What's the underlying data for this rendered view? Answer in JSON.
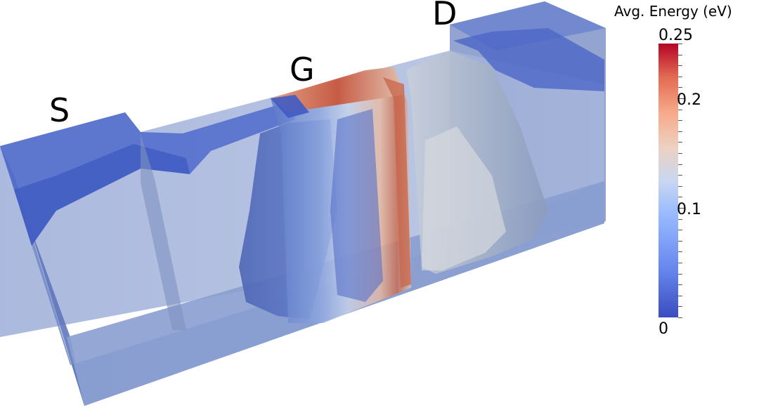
{
  "terminals": {
    "source": "S",
    "gate": "G",
    "drain": "D"
  },
  "colorbar": {
    "title": "Avg. Energy (eV)",
    "min_label": "0",
    "max_label": "0.25",
    "tick_labels": [
      "0.2",
      "0.1"
    ],
    "min_value": 0,
    "max_value": 0.25,
    "tick_values": [
      0.2,
      0.1
    ],
    "colormap": "cool-to-warm",
    "colors": {
      "low": "#3b4cc0",
      "mid": "#dddddd",
      "high": "#b40426"
    }
  },
  "colors": {
    "device_fill": "#7d93c8",
    "channel_surface": "#5a78c8",
    "gate_hot": "#c9553d"
  }
}
